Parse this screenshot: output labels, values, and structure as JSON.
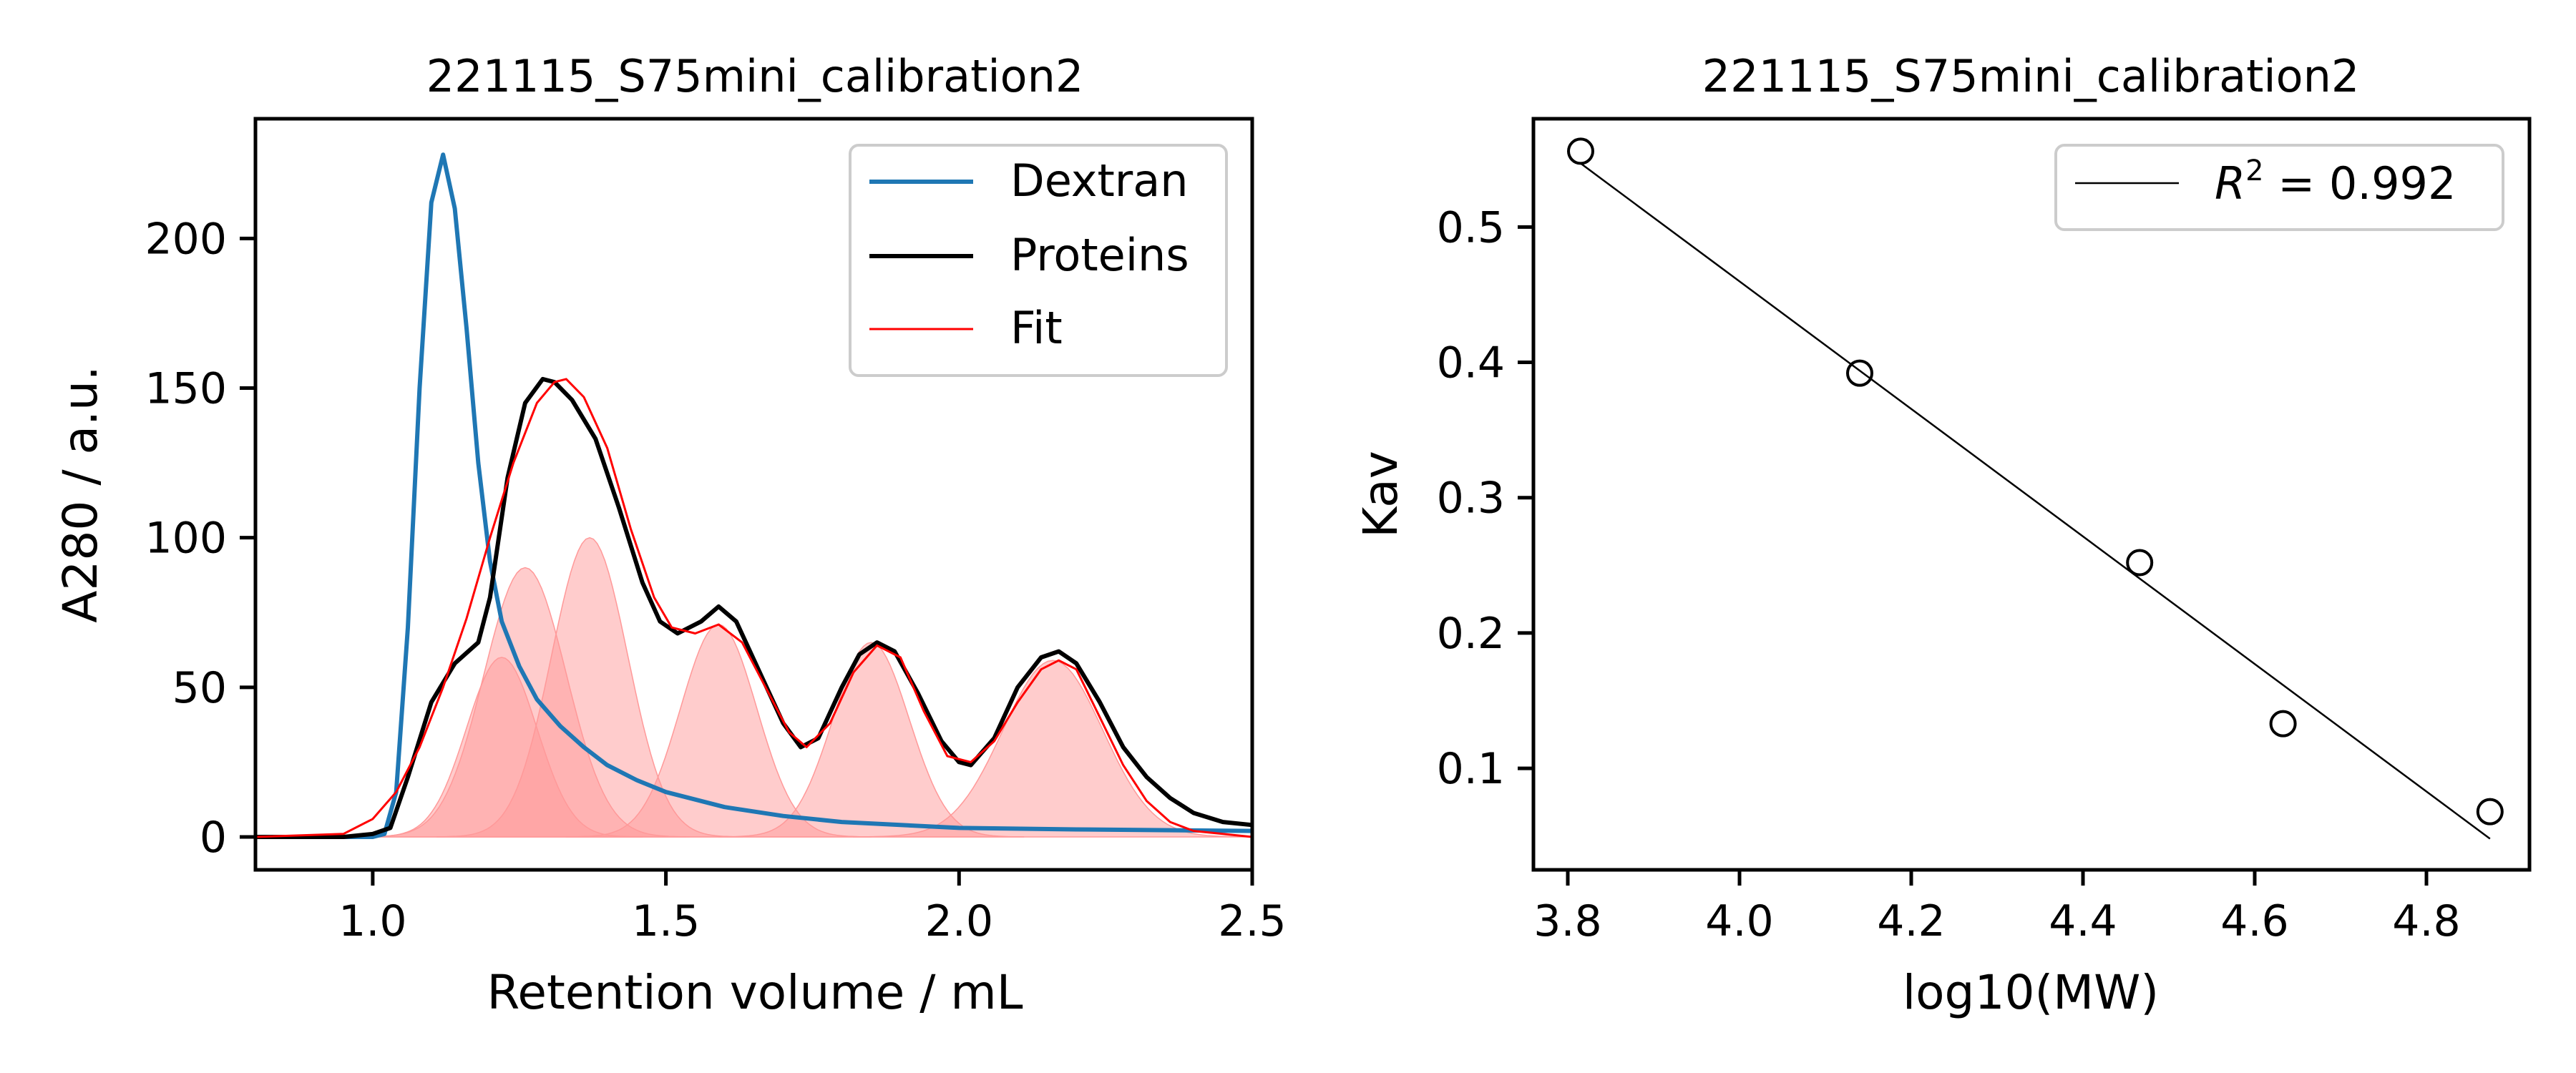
{
  "chart_data": [
    {
      "type": "line",
      "title": "221115_S75mini_calibration2",
      "xlabel": "Retention volume / mL",
      "ylabel": "A280 / a.u.",
      "xlim": [
        0.8,
        2.5
      ],
      "ylim": [
        -11,
        240
      ],
      "xticks": [
        1.0,
        1.5,
        2.0,
        2.5
      ],
      "xtick_labels": [
        "1.0",
        "1.5",
        "2.0",
        "2.5"
      ],
      "yticks": [
        0,
        50,
        100,
        150,
        200
      ],
      "ytick_labels": [
        "0",
        "50",
        "100",
        "150",
        "200"
      ],
      "legend_position": "top-right",
      "grid": false,
      "series": [
        {
          "name": "Dextran",
          "color": "#1f77b4",
          "x": [
            0.8,
            1.0,
            1.02,
            1.04,
            1.06,
            1.08,
            1.1,
            1.12,
            1.14,
            1.16,
            1.18,
            1.2,
            1.22,
            1.25,
            1.28,
            1.32,
            1.36,
            1.4,
            1.45,
            1.5,
            1.6,
            1.7,
            1.8,
            1.9,
            2.0,
            2.2,
            2.5
          ],
          "y": [
            0,
            0,
            1,
            15,
            70,
            150,
            212,
            228,
            210,
            170,
            125,
            92,
            72,
            57,
            46,
            37,
            30,
            24,
            19,
            15,
            10,
            7,
            5,
            4,
            3,
            2.5,
            2
          ]
        },
        {
          "name": "Proteins",
          "color": "#000000",
          "x": [
            0.8,
            0.95,
            1.0,
            1.03,
            1.06,
            1.1,
            1.14,
            1.18,
            1.2,
            1.23,
            1.26,
            1.29,
            1.31,
            1.34,
            1.38,
            1.42,
            1.46,
            1.49,
            1.52,
            1.56,
            1.59,
            1.62,
            1.66,
            1.7,
            1.73,
            1.76,
            1.8,
            1.83,
            1.86,
            1.89,
            1.93,
            1.97,
            2.0,
            2.02,
            2.06,
            2.1,
            2.14,
            2.17,
            2.2,
            2.24,
            2.28,
            2.32,
            2.36,
            2.4,
            2.45,
            2.5
          ],
          "y": [
            0,
            0,
            1,
            3,
            20,
            45,
            58,
            65,
            80,
            120,
            145,
            153,
            152,
            146,
            133,
            110,
            85,
            72,
            68,
            72,
            77,
            72,
            55,
            38,
            30,
            33,
            50,
            61,
            65,
            62,
            48,
            32,
            25,
            24,
            33,
            50,
            60,
            62,
            58,
            45,
            30,
            20,
            13,
            8,
            5,
            4
          ]
        },
        {
          "name": "Fit",
          "color": "#ff0000",
          "x": [
            0.8,
            0.95,
            1.0,
            1.04,
            1.08,
            1.12,
            1.16,
            1.2,
            1.24,
            1.28,
            1.31,
            1.33,
            1.36,
            1.4,
            1.44,
            1.48,
            1.51,
            1.55,
            1.59,
            1.63,
            1.67,
            1.71,
            1.74,
            1.78,
            1.82,
            1.86,
            1.9,
            1.94,
            1.98,
            2.02,
            2.06,
            2.1,
            2.14,
            2.17,
            2.2,
            2.24,
            2.28,
            2.32,
            2.36,
            2.4,
            2.45,
            2.5
          ],
          "y": [
            0,
            1,
            6,
            15,
            30,
            50,
            73,
            100,
            125,
            145,
            152,
            153,
            147,
            130,
            103,
            80,
            70,
            68,
            71,
            65,
            50,
            35,
            30,
            38,
            55,
            64,
            60,
            42,
            27,
            25,
            32,
            45,
            56,
            59,
            56,
            40,
            24,
            12,
            5,
            2,
            1,
            0
          ]
        }
      ],
      "fill_components": {
        "color": "#ff9999",
        "note_means": [
          1.22,
          1.26,
          1.37,
          1.59,
          1.85,
          2.16
        ],
        "amplitudes": [
          60,
          90,
          100,
          71,
          65,
          59
        ],
        "sigmas": [
          0.06,
          0.07,
          0.065,
          0.065,
          0.065,
          0.085
        ]
      }
    },
    {
      "type": "scatter",
      "title": "221115_S75mini_calibration2",
      "xlabel": "log10(MW)",
      "ylabel": "Kav",
      "xlim": [
        3.76,
        4.92
      ],
      "ylim": [
        0.025,
        0.58
      ],
      "xticks": [
        3.8,
        4.0,
        4.2,
        4.4,
        4.6,
        4.8
      ],
      "xtick_labels": [
        "3.8",
        "4.0",
        "4.2",
        "4.4",
        "4.6",
        "4.8"
      ],
      "yticks": [
        0.1,
        0.2,
        0.3,
        0.4,
        0.5
      ],
      "ytick_labels": [
        "0.1",
        "0.2",
        "0.3",
        "0.4",
        "0.5"
      ],
      "legend_position": "top-right",
      "grid": false,
      "points": {
        "x": [
          3.815,
          4.14,
          4.466,
          4.633,
          4.874
        ],
        "y": [
          0.556,
          0.392,
          0.252,
          0.133,
          0.068
        ]
      },
      "fit_line": {
        "x": [
          3.815,
          4.874
        ],
        "y": [
          0.547,
          0.048
        ],
        "color": "#000000"
      },
      "legend_label_prefix": "R",
      "legend_label_sup": "2",
      "legend_label_suffix": " = 0.992"
    }
  ]
}
